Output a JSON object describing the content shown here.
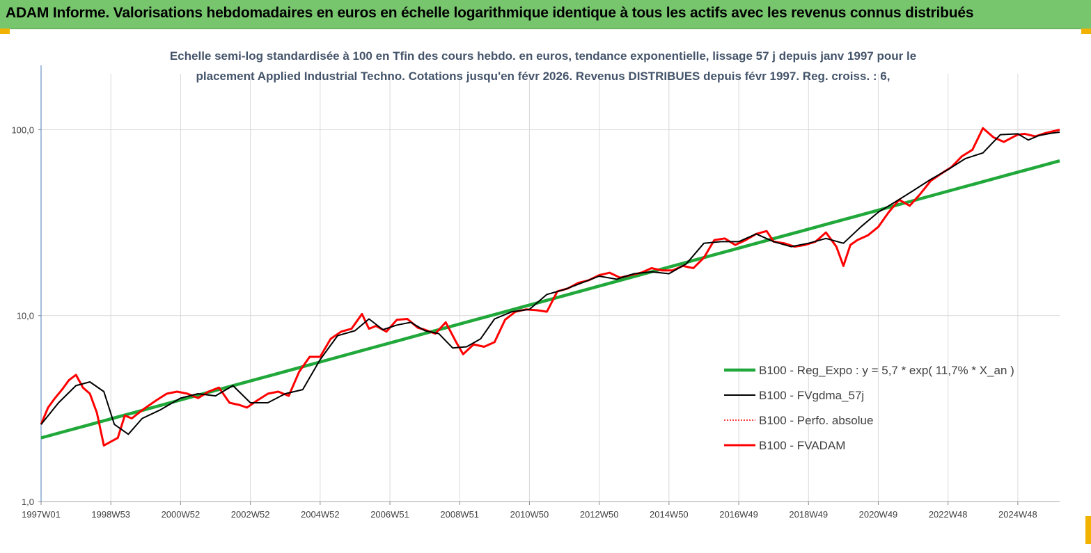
{
  "header": {
    "title": "ADAM Informe. Valorisations hebdomadaires en euros en échelle logarithmique identique à tous les actifs avec les revenus connus distribués"
  },
  "colors": {
    "header_bg": "#77c66e",
    "corner": "#f2b300",
    "trend": "#21a83a",
    "smooth": "#000000",
    "perf": "#ff0000",
    "fvadam": "#ff0000",
    "grid": "#d9d9d9",
    "axis": "#4a7ebb"
  },
  "chart_data": {
    "type": "line",
    "title_line1": "Echelle semi-log standardisée à 100 en Tfin des cours hebdo. en euros, tendance exponentielle, lissage 57 j depuis janv 1997 pour le",
    "title_line2": "placement Applied Industrial Techno. Cotations jusqu'en févr 2026. Revenus DISTRIBUES depuis févr 1997. Reg. croiss. : 6,",
    "y_scale": "log",
    "ylim": [
      1,
      200
    ],
    "y_ticks": [
      {
        "value": 1,
        "label": "1,0"
      },
      {
        "value": 10,
        "label": "10,0"
      },
      {
        "value": 100,
        "label": "100,0"
      }
    ],
    "xlim": [
      1997.0,
      2026.2
    ],
    "x_ticks": [
      {
        "value": 1997.0,
        "label": "1997W01"
      },
      {
        "value": 1999.0,
        "label": "1998W53"
      },
      {
        "value": 2001.0,
        "label": "2000W52"
      },
      {
        "value": 2003.0,
        "label": "2002W52"
      },
      {
        "value": 2005.0,
        "label": "2004W52"
      },
      {
        "value": 2007.0,
        "label": "2006W51"
      },
      {
        "value": 2009.0,
        "label": "2008W51"
      },
      {
        "value": 2011.0,
        "label": "2010W50"
      },
      {
        "value": 2013.0,
        "label": "2012W50"
      },
      {
        "value": 2015.0,
        "label": "2014W50"
      },
      {
        "value": 2017.0,
        "label": "2016W49"
      },
      {
        "value": 2019.0,
        "label": "2018W49"
      },
      {
        "value": 2021.0,
        "label": "2020W49"
      },
      {
        "value": 2023.0,
        "label": "2022W48"
      },
      {
        "value": 2025.0,
        "label": "2024W48"
      }
    ],
    "grid": "vertical",
    "legend_position": "right",
    "series": [
      {
        "name": "B100 - Reg_Expo : y = 5,7 * exp( 11,7% *  X_an )",
        "style": "trend",
        "x": [
          1997.0,
          2026.2
        ],
        "values": [
          2.2,
          68
        ]
      },
      {
        "name": "B100 - FVgdma_57j",
        "style": "smooth",
        "x": [
          1997.0,
          1997.5,
          1998.0,
          1998.4,
          1998.8,
          1999.1,
          1999.5,
          1999.9,
          2000.4,
          2001.0,
          2001.5,
          2002.0,
          2002.5,
          2003.0,
          2003.5,
          2004.0,
          2004.5,
          2005.0,
          2005.5,
          2006.0,
          2006.4,
          2006.8,
          2007.2,
          2007.6,
          2008.0,
          2008.4,
          2008.8,
          2009.2,
          2009.6,
          2010.0,
          2010.5,
          2011.0,
          2011.5,
          2012.0,
          2012.5,
          2013.0,
          2013.5,
          2014.0,
          2014.5,
          2015.0,
          2015.5,
          2016.0,
          2016.5,
          2017.0,
          2017.5,
          2018.0,
          2018.5,
          2019.0,
          2019.5,
          2020.0,
          2020.5,
          2021.0,
          2021.5,
          2022.0,
          2022.5,
          2023.0,
          2023.5,
          2024.0,
          2024.5,
          2025.0,
          2025.3,
          2025.6,
          2026.0,
          2026.2
        ],
        "values": [
          2.6,
          3.4,
          4.2,
          4.4,
          3.9,
          2.6,
          2.3,
          2.8,
          3.1,
          3.6,
          3.8,
          3.7,
          4.2,
          3.4,
          3.4,
          3.8,
          4.0,
          5.8,
          7.8,
          8.3,
          9.6,
          8.4,
          8.9,
          9.2,
          8.3,
          8.0,
          6.7,
          6.8,
          7.5,
          9.6,
          10.5,
          10.8,
          13.0,
          13.8,
          15.0,
          16.3,
          15.7,
          16.8,
          17.2,
          16.8,
          19.0,
          24.5,
          25.0,
          25.0,
          27.5,
          25.0,
          23.5,
          24.5,
          26.0,
          24.5,
          30.0,
          36.0,
          41.0,
          47.0,
          54.0,
          61.0,
          70.0,
          75.0,
          94.0,
          95.0,
          88.0,
          93.0,
          96.0,
          97.0
        ]
      },
      {
        "name": "B100 - Perfo. absolue",
        "style": "perf",
        "x": [],
        "values": []
      },
      {
        "name": "B100 - FVADAM",
        "style": "fvadam",
        "x": [
          1997.0,
          1997.2,
          1997.4,
          1997.6,
          1997.8,
          1998.0,
          1998.2,
          1998.4,
          1998.6,
          1998.8,
          1999.0,
          1999.2,
          1999.4,
          1999.6,
          1999.8,
          2000.0,
          2000.3,
          2000.6,
          2000.9,
          2001.2,
          2001.5,
          2001.8,
          2002.1,
          2002.4,
          2002.7,
          2002.9,
          2003.2,
          2003.5,
          2003.8,
          2004.1,
          2004.4,
          2004.7,
          2005.0,
          2005.3,
          2005.6,
          2005.9,
          2006.2,
          2006.4,
          2006.6,
          2006.9,
          2007.2,
          2007.5,
          2007.8,
          2008.0,
          2008.3,
          2008.6,
          2008.9,
          2009.1,
          2009.4,
          2009.7,
          2010.0,
          2010.3,
          2010.6,
          2010.9,
          2011.2,
          2011.5,
          2011.8,
          2012.1,
          2012.4,
          2012.7,
          2013.0,
          2013.3,
          2013.6,
          2013.9,
          2014.2,
          2014.5,
          2014.8,
          2015.1,
          2015.4,
          2015.7,
          2016.0,
          2016.3,
          2016.6,
          2016.9,
          2017.2,
          2017.5,
          2017.8,
          2018.0,
          2018.3,
          2018.6,
          2018.9,
          2019.2,
          2019.5,
          2019.8,
          2020.0,
          2020.2,
          2020.4,
          2020.7,
          2021.0,
          2021.3,
          2021.6,
          2021.9,
          2022.2,
          2022.5,
          2022.8,
          2023.1,
          2023.4,
          2023.7,
          2024.0,
          2024.3,
          2024.6,
          2024.9,
          2025.0,
          2025.2,
          2025.5,
          2025.8,
          2026.0,
          2026.2
        ],
        "values": [
          2.6,
          3.2,
          3.6,
          4.0,
          4.5,
          4.8,
          4.1,
          3.8,
          3.0,
          2.0,
          2.1,
          2.2,
          2.9,
          2.8,
          3.0,
          3.2,
          3.5,
          3.8,
          3.9,
          3.8,
          3.6,
          3.9,
          4.1,
          3.4,
          3.3,
          3.2,
          3.5,
          3.8,
          3.9,
          3.7,
          5.0,
          6.0,
          6.0,
          7.5,
          8.2,
          8.5,
          10.2,
          8.5,
          8.8,
          8.2,
          9.5,
          9.6,
          8.6,
          8.4,
          8.0,
          9.2,
          7.2,
          6.2,
          7.0,
          6.8,
          7.2,
          9.5,
          10.5,
          10.8,
          10.7,
          10.5,
          13.5,
          14.0,
          15.0,
          15.5,
          16.5,
          17.0,
          16.0,
          16.5,
          17.0,
          18.0,
          17.5,
          17.5,
          18.5,
          18.0,
          20.5,
          25.5,
          26.0,
          24.0,
          25.5,
          27.5,
          28.5,
          25.0,
          24.5,
          23.5,
          24.0,
          25.0,
          28.0,
          23.5,
          18.5,
          24.0,
          25.5,
          27.0,
          30.0,
          36.0,
          42.0,
          39.0,
          45.0,
          53.0,
          58.0,
          63.0,
          72.0,
          78.0,
          102.0,
          91.0,
          86.0,
          92.0,
          94.0,
          95.0,
          92.0,
          96.0,
          98.0,
          100.0
        ]
      }
    ]
  }
}
